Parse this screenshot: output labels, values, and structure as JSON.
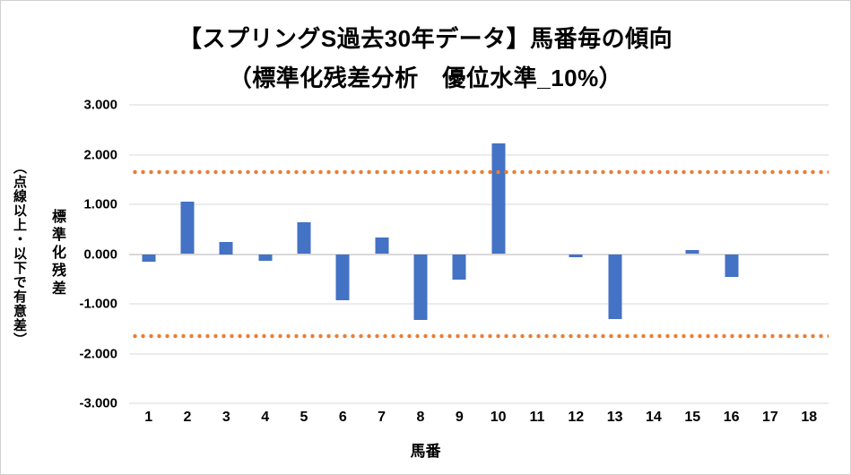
{
  "title": {
    "line1": "【スプリングS過去30年データ】馬番毎の傾向",
    "line2": "（標準化残差分析　優位水準_10%）"
  },
  "y_axis": {
    "title_main": "標準化残差",
    "title_sub": "（点線以上・以下で有意差）"
  },
  "x_axis": {
    "title": "馬番"
  },
  "colors": {
    "bar": "#4472C4",
    "threshold": "#ED7D31",
    "gridline": "#D9D9D9",
    "text": "#000000",
    "border": "#D0D0D0"
  },
  "chart_data": {
    "type": "bar",
    "title": "【スプリングS過去30年データ】馬番毎の傾向",
    "subtitle": "（標準化残差分析　優位水準_10%）",
    "xlabel": "馬番",
    "ylabel": "標準化残差（点線以上・以下で有意差）",
    "categories": [
      "1",
      "2",
      "3",
      "4",
      "5",
      "6",
      "7",
      "8",
      "9",
      "10",
      "11",
      "12",
      "13",
      "14",
      "15",
      "16",
      "17",
      "18"
    ],
    "values": [
      -0.15,
      1.05,
      0.25,
      -0.14,
      0.64,
      -0.93,
      0.33,
      -1.32,
      -0.52,
      2.22,
      0,
      -0.06,
      -1.31,
      0,
      0.09,
      -0.46,
      0,
      0
    ],
    "ylim": [
      -3,
      3
    ],
    "yticks": [
      "3.000",
      "2.000",
      "1.000",
      "0.000",
      "-1.000",
      "-2.000",
      "-3.000"
    ],
    "threshold_lines": [
      1.645,
      -1.645
    ],
    "grid": true,
    "legend": false
  }
}
